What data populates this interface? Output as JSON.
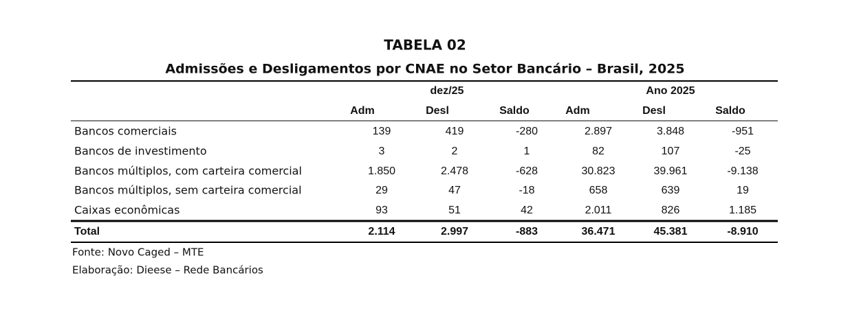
{
  "title": "TABELA  02",
  "subtitle": "Admissões e Desligamentos por CNAE no Setor Bancário – Brasil, 2025",
  "table": {
    "group_headers": [
      "dez/25",
      "Ano 2025"
    ],
    "column_headers": [
      "Adm",
      "Desl",
      "Saldo",
      "Adm",
      "Desl",
      "Saldo"
    ],
    "rows": [
      [
        "Bancos comerciais",
        "139",
        "419",
        "-280",
        "2.897",
        "3.848",
        "-951"
      ],
      [
        "Bancos de investimento",
        "3",
        "2",
        "1",
        "82",
        "107",
        "-25"
      ],
      [
        "Bancos múltiplos, com carteira comercial",
        "1.850",
        "2.478",
        "-628",
        "30.823",
        "39.961",
        "-9.138"
      ],
      [
        "Bancos múltiplos, sem carteira comercial",
        "29",
        "47",
        "-18",
        "658",
        "639",
        "19"
      ],
      [
        "Caixas econômicas",
        "93",
        "51",
        "42",
        "2.011",
        "826",
        "1.185"
      ]
    ],
    "total": [
      "Total",
      "2.114",
      "2.997",
      "-883",
      "36.471",
      "45.381",
      "-8.910"
    ]
  },
  "footnotes": [
    "Fonte: Novo Caged – MTE",
    "Elaboração: Dieese – Rede Bancários"
  ]
}
